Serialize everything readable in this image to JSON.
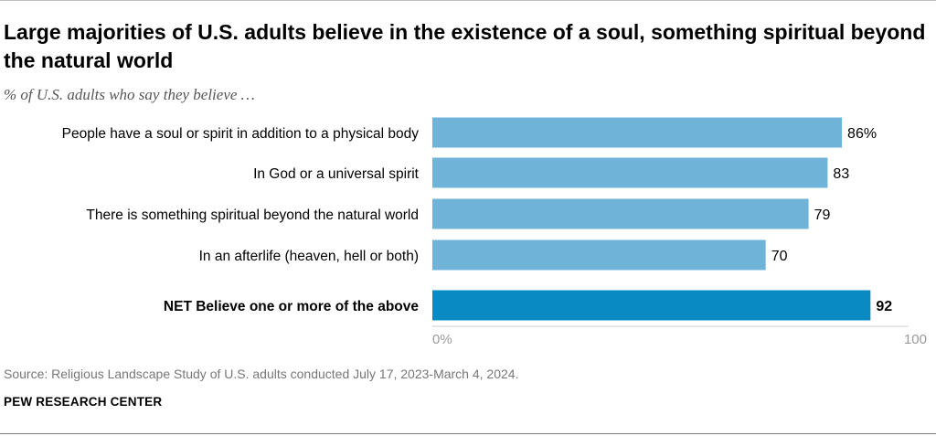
{
  "header": {
    "title": "Large majorities of U.S. adults believe in the existence of a soul, something spiritual beyond the natural world",
    "subtitle": "% of U.S. adults who say they believe …"
  },
  "footer": {
    "source": "Source: Religious Landscape Study of U.S. adults conducted July 17, 2023-March 4, 2024.",
    "organization": "PEW RESEARCH CENTER"
  },
  "colors": {
    "bar": "#6fb3d9",
    "net_bar": "#0a8ac2"
  },
  "chart_data": {
    "type": "bar",
    "orientation": "horizontal",
    "categories": [
      "People have a soul or spirit in addition to a physical body",
      "In God or a universal spirit",
      "There is something spiritual beyond the natural world",
      "In an afterlife (heaven, hell or both)",
      "NET Believe one or more of the above"
    ],
    "values": [
      86,
      83,
      79,
      70,
      92
    ],
    "data_labels": [
      "86%",
      "83",
      "79",
      "70",
      "92"
    ],
    "emphasized": [
      false,
      false,
      false,
      false,
      true
    ],
    "xlim": [
      0,
      100
    ],
    "x_tick_labels": [
      "0%",
      "100"
    ],
    "grid": false,
    "legend": "none"
  }
}
